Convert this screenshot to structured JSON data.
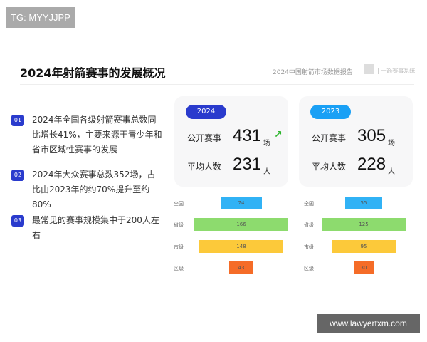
{
  "watermark_top": "TG: MYYJJPP",
  "title": "2024年射箭赛事的发展概况",
  "report": "2024中国射箭市场数据报告",
  "brand": "| 一箭赛事系统",
  "items": [
    {
      "num": "01",
      "text": "2024年全国各级射箭赛事总数同比增长41%，主要来源于青少年和省市区域性赛事的发展"
    },
    {
      "num": "02",
      "text": "2024年大众赛事总数352场，占比由2023年的约70%提升至约80%"
    },
    {
      "num": "03",
      "text": "最常见的赛事规模集中于200人左右"
    }
  ],
  "cards": [
    {
      "year": "2024",
      "color": "#2a3bcd",
      "events_label": "公开赛事",
      "events": "431",
      "events_unit": "场",
      "avg_label": "平均人数",
      "avg": "231",
      "avg_unit": "人",
      "trend": "up-arrow-icon"
    },
    {
      "year": "2023",
      "color": "#1aa0f5",
      "events_label": "公开赛事",
      "events": "305",
      "events_unit": "场",
      "avg_label": "平均人数",
      "avg": "228",
      "avg_unit": "人"
    }
  ],
  "funnels": [
    {
      "levels": [
        {
          "label": "全国",
          "value": 74,
          "color": "#31b2f5"
        },
        {
          "label": "省级",
          "value": 166,
          "color": "#8ddb6e"
        },
        {
          "label": "市级",
          "value": 148,
          "color": "#fcc93a"
        },
        {
          "label": "区级",
          "value": 43,
          "color": "#f56c28"
        }
      ]
    },
    {
      "levels": [
        {
          "label": "全国",
          "value": 55,
          "color": "#31b2f5"
        },
        {
          "label": "省级",
          "value": 125,
          "color": "#8ddb6e"
        },
        {
          "label": "市级",
          "value": 95,
          "color": "#fcc93a"
        },
        {
          "label": "区级",
          "value": 30,
          "color": "#f56c28"
        }
      ]
    }
  ],
  "watermark_bottom": "www.lawyertxm.com"
}
